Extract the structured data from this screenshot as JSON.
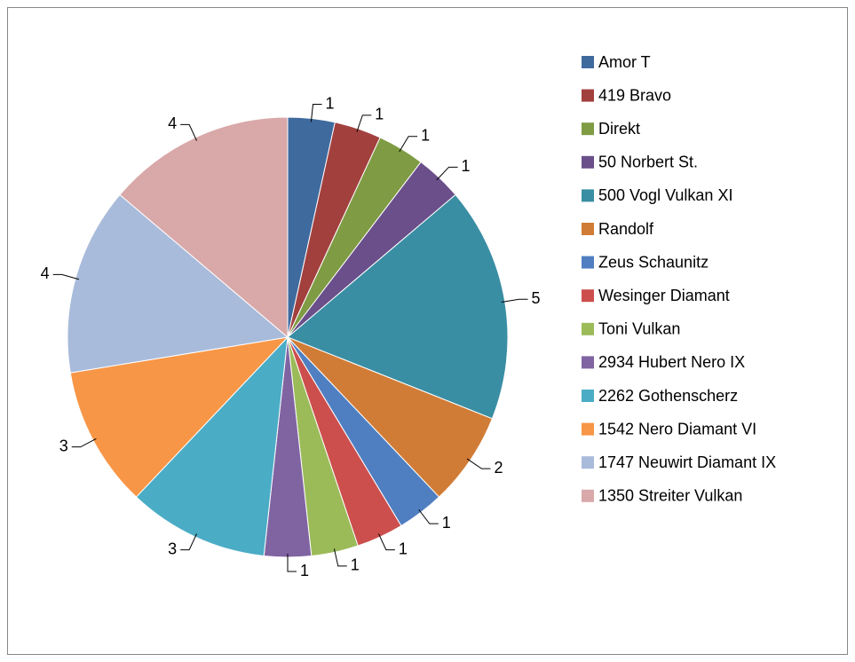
{
  "chart_data": {
    "type": "pie",
    "categories": [
      "Amor T",
      "419 Bravo",
      "Direkt",
      "50 Norbert St.",
      "500 Vogl Vulkan XI",
      "Randolf",
      "Zeus Schaunitz",
      "Wesinger Diamant",
      "Toni Vulkan",
      "2934 Hubert Nero IX",
      "2262 Gothenscherz",
      "1542 Nero Diamant VI",
      "1747 Neuwirt Diamant IX",
      "1350 Streiter Vulkan"
    ],
    "values": [
      1,
      1,
      1,
      1,
      5,
      2,
      1,
      1,
      1,
      1,
      3,
      3,
      4,
      4
    ],
    "colors": [
      "#3f6a9e",
      "#a2403e",
      "#7f9b43",
      "#6a4f8a",
      "#3a8ea4",
      "#d17c36",
      "#4f7fc1",
      "#cc4f4d",
      "#9bbb59",
      "#8064a2",
      "#4bacc6",
      "#f79646",
      "#a9bbdb",
      "#d9a8a8"
    ],
    "legend": "right"
  }
}
